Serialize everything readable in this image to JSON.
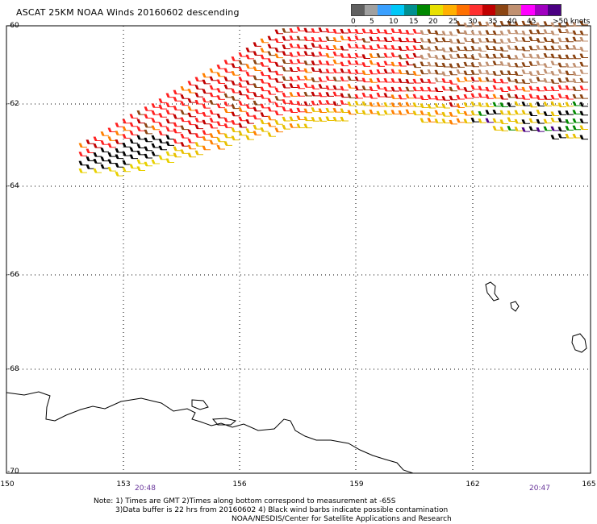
{
  "title": "ASCAT 25KM NOAA Winds 20160602 descending",
  "legend": {
    "colors": [
      "#606060",
      "#a0a0a0",
      "#3aa0ff",
      "#00c8f8",
      "#009090",
      "#008800",
      "#e8e000",
      "#ffb000",
      "#ff7000",
      "#ff3030",
      "#c00000",
      "#8b4513",
      "#c09070",
      "#ff00ff",
      "#a000c0",
      "#4b0082"
    ],
    "ticks": [
      "0",
      "5",
      "10",
      "15",
      "20",
      "25",
      "30",
      "35",
      "40",
      "45",
      ">50 knots"
    ]
  },
  "lat_labels": [
    "-60",
    "-62",
    "-64",
    "-66",
    "-68",
    "-70"
  ],
  "lon_labels": [
    "150",
    "153",
    "156",
    "159",
    "162",
    "165"
  ],
  "times": [
    "20:48",
    "20:47"
  ],
  "notes": {
    "line1": "Note: 1) Times are GMT 2)Times along bottom correspond to measurement at -65S",
    "line2": "3)Data buffer is 22 hrs from 20160602 4) Black wind barbs indicate possible contamination",
    "line3": "NOAA/NESDIS/Center for Satellite Applications and Research"
  }
}
